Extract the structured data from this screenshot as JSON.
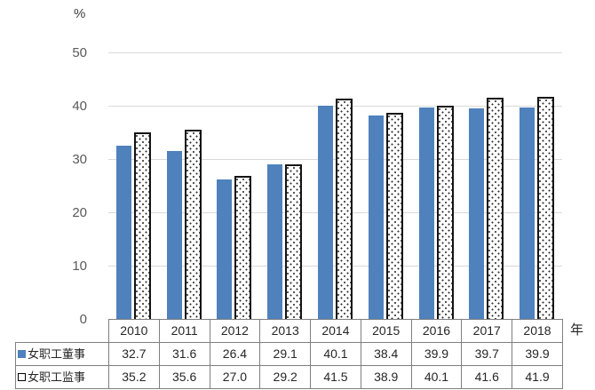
{
  "labels": {
    "y_unit": "%",
    "x_unit": "年"
  },
  "colors": {
    "series1_fill": "#4F81BD",
    "series2_fill": "#FFFFFF",
    "series2_border": "#141414",
    "gridline": "#D9D9D9",
    "axis_text": "#595959",
    "table_border": "#7F7F7F",
    "table_text": "#262626"
  },
  "chart_data": {
    "type": "bar",
    "title": "",
    "xlabel": "年",
    "ylabel": "%",
    "ylim": [
      0,
      50
    ],
    "yticks": [
      0,
      10,
      20,
      30,
      40,
      50
    ],
    "grid": true,
    "legend_position": "data-table-left",
    "categories": [
      "2010",
      "2011",
      "2012",
      "2013",
      "2014",
      "2015",
      "2016",
      "2017",
      "2018"
    ],
    "series": [
      {
        "name": "女职工董事",
        "style": "solid",
        "color": "#4F81BD",
        "values": [
          32.7,
          31.6,
          26.4,
          29.1,
          40.1,
          38.4,
          39.9,
          39.7,
          39.9
        ]
      },
      {
        "name": "女职工监事",
        "style": "dotted",
        "color": "#FFFFFF",
        "values": [
          35.2,
          35.6,
          27.0,
          29.2,
          41.5,
          38.9,
          40.1,
          41.6,
          41.9
        ]
      }
    ]
  }
}
